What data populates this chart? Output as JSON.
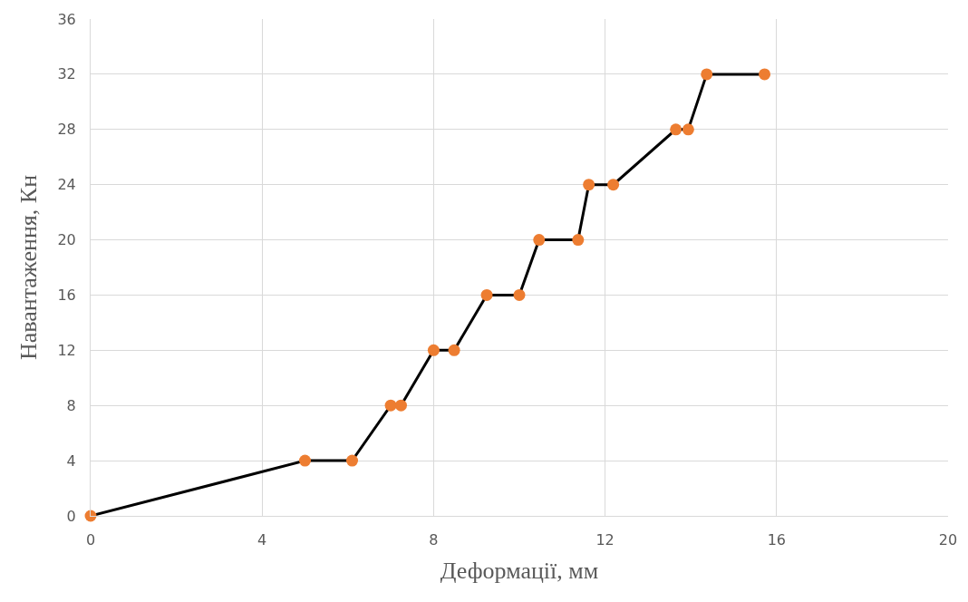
{
  "chart_data": {
    "type": "line",
    "xlabel": "Деформації, мм",
    "ylabel": "Навантаження, Кн",
    "x": [
      0,
      5.0,
      6.1,
      7.0,
      7.24,
      8.0,
      8.48,
      9.24,
      10.0,
      10.46,
      11.37,
      11.62,
      12.19,
      13.65,
      13.94,
      14.37,
      15.72
    ],
    "series": [
      {
        "color": "#000000",
        "colors": [
          "#ed7d31",
          "#ed7d31",
          "#ed7d31",
          "#ed7d31",
          "#ed7d31",
          "#ed7d31",
          "#ed7d31",
          "#ed7d31",
          "#ed7d31",
          "#ed7d31",
          "#ed7d31",
          "#ed7d31",
          "#ed7d31",
          "#ed7d31",
          "#ed7d31",
          "#ed7d31",
          "#ed7d31"
        ],
        "values": [
          0,
          4,
          4,
          8,
          8,
          12,
          12,
          16,
          16,
          20,
          20,
          24,
          24,
          28,
          28,
          32,
          32
        ]
      }
    ],
    "xlim": [
      0,
      20
    ],
    "xticks": [
      0,
      4,
      8,
      12,
      16,
      20
    ],
    "ylim": [
      0,
      36
    ],
    "yticks": [
      0,
      4,
      8,
      12,
      16,
      20,
      24,
      28,
      32,
      36
    ],
    "grid": true,
    "marker": "circle",
    "line_style": "solid"
  }
}
